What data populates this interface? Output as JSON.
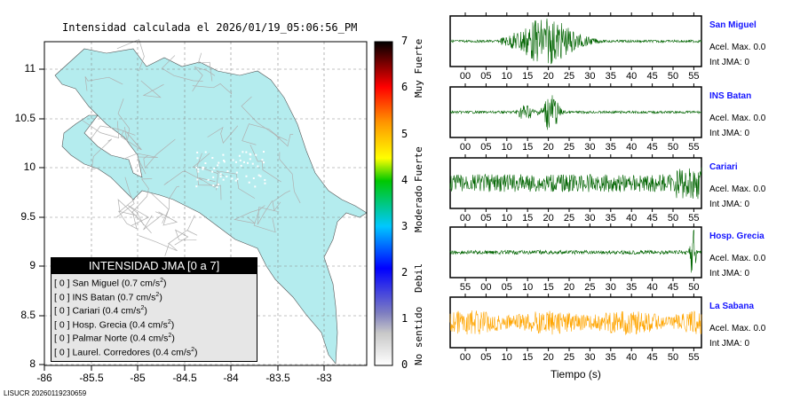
{
  "title": "Intensidad calculada el 2026/01/19_05:06:56_PM",
  "map": {
    "lon_ticks": [
      "-86",
      "-85.5",
      "-85",
      "-84.5",
      "-84",
      "-83.5",
      "-83"
    ],
    "lat_ticks": [
      "11",
      "10.5",
      "10",
      "9.5",
      "9",
      "8.5",
      "8"
    ],
    "land_color": "#b4ecee"
  },
  "legend": {
    "title": "INTENSIDAD JMA [0 a 7]",
    "items": [
      {
        "int": "[ 0 ]",
        "name": "San Miguel",
        "acc": "(0.7 cm/s",
        "sup": "2",
        ")": ")"
      },
      {
        "int": "[ 0 ]",
        "name": "INS Batan",
        "acc": "(0.7 cm/s",
        "sup": "2"
      },
      {
        "int": "[ 0 ]",
        "name": "Cariari",
        "acc": "(0.4 cm/s",
        "sup": "2"
      },
      {
        "int": "[ 0 ]",
        "name": "Hosp. Grecia",
        "acc": "(0.4 cm/s",
        "sup": "2"
      },
      {
        "int": "[ 0 ]",
        "name": "Palmar Norte",
        "acc": "(0.4 cm/s",
        "sup": "2"
      },
      {
        "int": "[ 0 ]",
        "name": "Laurel. Corredores",
        "acc": "(0.4 cm/s",
        "sup": "2"
      }
    ]
  },
  "colorbar": {
    "ticks": [
      "0",
      "1",
      "2",
      "3",
      "4",
      "5",
      "6",
      "7"
    ],
    "labels": [
      "No sentido",
      "Debil",
      "Moderado",
      "Fuerte",
      "Muy Fuerte"
    ]
  },
  "stations": [
    {
      "name": "San Miguel",
      "acel": "Acel. Max. 0.0",
      "jma": "Int JMA: 0",
      "color": "#006400",
      "ticks": [
        "00",
        "05",
        "10",
        "15",
        "20",
        "25",
        "30",
        "35",
        "40",
        "45",
        "50",
        "55"
      ]
    },
    {
      "name": "INS Batan",
      "acel": "Acel. Max. 0.0",
      "jma": "Int JMA: 0",
      "color": "#006400",
      "ticks": [
        "00",
        "05",
        "10",
        "15",
        "20",
        "25",
        "30",
        "35",
        "40",
        "45",
        "50",
        "55"
      ]
    },
    {
      "name": "Cariari",
      "acel": "Acel. Max. 0.0",
      "jma": "Int JMA: 0",
      "color": "#006400",
      "ticks": [
        "00",
        "05",
        "10",
        "15",
        "20",
        "25",
        "30",
        "35",
        "40",
        "45",
        "50",
        "55"
      ]
    },
    {
      "name": "Hosp. Grecia",
      "acel": "Acel. Max. 0.0",
      "jma": "Int JMA: 0",
      "color": "#006400",
      "ticks": [
        "55",
        "00",
        "05",
        "10",
        "15",
        "20",
        "25",
        "30",
        "35",
        "40",
        "45",
        "50"
      ]
    },
    {
      "name": "La Sabana",
      "acel": "Acel. Max. 0.0",
      "jma": "Int JMA: 0",
      "color": "#ffa500",
      "ticks": [
        "00",
        "05",
        "10",
        "15",
        "20",
        "25",
        "30",
        "35",
        "40",
        "45",
        "50",
        "55"
      ]
    }
  ],
  "xaxis_label": "Tiempo (s)",
  "footer": "LISUCR 20260119230659"
}
